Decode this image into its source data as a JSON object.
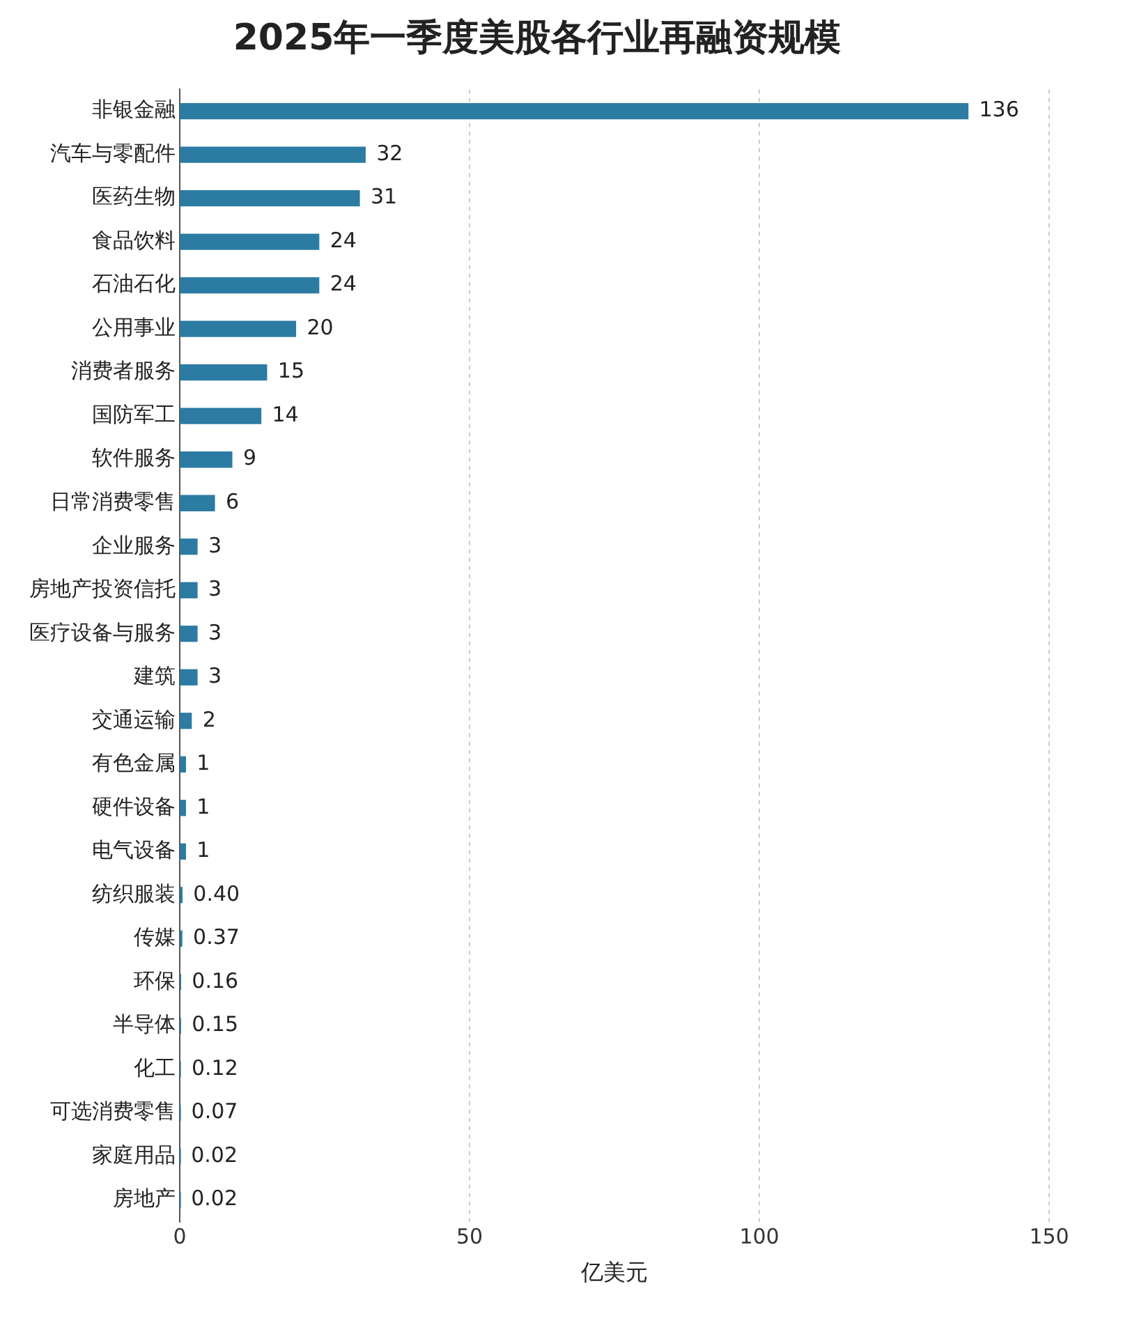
{
  "chart_data": {
    "type": "bar",
    "orientation": "horizontal",
    "title": "2025年一季度美股各行业再融资规模",
    "xlabel": "亿美元",
    "categories": [
      "非银金融",
      "汽车与零配件",
      "医药生物",
      "食品饮料",
      "石油石化",
      "公用事业",
      "消费者服务",
      "国防军工",
      "软件服务",
      "日常消费零售",
      "企业服务",
      "房地产投资信托",
      "医疗设备与服务",
      "建筑",
      "交通运输",
      "有色金属",
      "硬件设备",
      "电气设备",
      "纺织服装",
      "传媒",
      "环保",
      "半导体",
      "化工",
      "可选消费零售",
      "家庭用品",
      "房地产"
    ],
    "values": [
      136,
      32,
      31,
      24,
      24,
      20,
      15,
      14,
      9,
      6,
      3,
      3,
      3,
      3,
      2,
      1,
      1,
      1,
      0.4,
      0.37,
      0.16,
      0.15,
      0.12,
      0.07,
      0.02,
      0.02
    ],
    "value_labels": [
      "136",
      "32",
      "31",
      "24",
      "24",
      "20",
      "15",
      "14",
      "9",
      "6",
      "3",
      "3",
      "3",
      "3",
      "2",
      "1",
      "1",
      "1",
      "0.40",
      "0.37",
      "0.16",
      "0.15",
      "0.12",
      "0.07",
      "0.02",
      "0.02"
    ],
    "color": "#2b7ba3",
    "xlim": [
      0,
      150
    ],
    "xticks": [
      0,
      50,
      100,
      150
    ],
    "grid": "x",
    "legend": false
  }
}
